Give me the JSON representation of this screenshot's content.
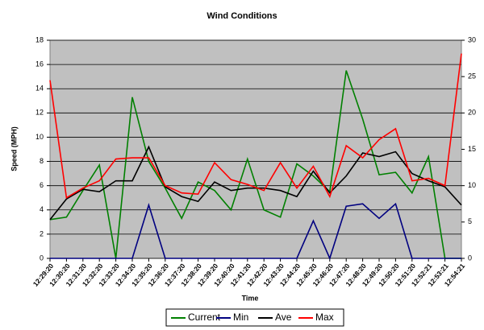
{
  "chart_data": {
    "type": "line",
    "title": "Wind Conditions",
    "x_label": "Time",
    "y_label": "Speed (MPH)",
    "categories": [
      "12:29:20",
      "12:30:20",
      "12:31:20",
      "12:32:20",
      "12:33:20",
      "12:34:20",
      "12:35:20",
      "12:36:20",
      "12:37:20",
      "12:38:20",
      "12:39:20",
      "12:40:20",
      "12:41:20",
      "12:42:20",
      "12:43:20",
      "12:44:20",
      "12:45:20",
      "12:46:20",
      "12:47:20",
      "12:48:20",
      "12:49:20",
      "12:50:20",
      "12:51:20",
      "12:52:21",
      "12:53:21",
      "12:54:21"
    ],
    "series": [
      {
        "name": "Current",
        "color": "#008000",
        "values": [
          3.2,
          3.4,
          5.6,
          7.7,
          0,
          13.3,
          8.0,
          5.8,
          3.3,
          6.3,
          5.6,
          4.0,
          8.2,
          4.0,
          3.4,
          7.8,
          6.8,
          5.5,
          15.5,
          11.5,
          6.9,
          7.1,
          5.4,
          8.4,
          0,
          0
        ]
      },
      {
        "name": "Min",
        "color": "#000080",
        "values": [
          0,
          0,
          0,
          0,
          0,
          0,
          4.4,
          0,
          0,
          0,
          0,
          0,
          0,
          0,
          0,
          0,
          3.1,
          0,
          4.3,
          4.5,
          3.3,
          4.5,
          0,
          0,
          0,
          0
        ]
      },
      {
        "name": "Ave",
        "color": "#000000",
        "values": [
          3.2,
          4.9,
          5.7,
          5.5,
          6.4,
          6.4,
          9.2,
          5.9,
          5.1,
          4.7,
          6.3,
          5.6,
          5.8,
          5.8,
          5.6,
          5.1,
          7.2,
          5.4,
          6.8,
          8.7,
          8.4,
          8.8,
          7.0,
          6.4,
          5.9,
          4.4
        ]
      },
      {
        "name": "Max",
        "color": "#ff0000",
        "values": [
          14.7,
          5.0,
          5.8,
          6.4,
          8.2,
          8.3,
          8.3,
          6.0,
          5.4,
          5.3,
          7.9,
          6.5,
          6.1,
          5.6,
          7.9,
          5.8,
          7.6,
          5.1,
          9.3,
          8.3,
          9.8,
          10.7,
          6.4,
          6.6,
          6.0,
          16.9
        ]
      }
    ],
    "ylim": [
      0,
      18
    ],
    "yticks": [
      0,
      2,
      4,
      6,
      8,
      10,
      12,
      14,
      16,
      18
    ],
    "y2lim": [
      0,
      30
    ],
    "y2ticks": [
      0,
      5,
      10,
      15,
      20,
      25,
      30
    ],
    "grid": true,
    "legend": "bottom"
  }
}
